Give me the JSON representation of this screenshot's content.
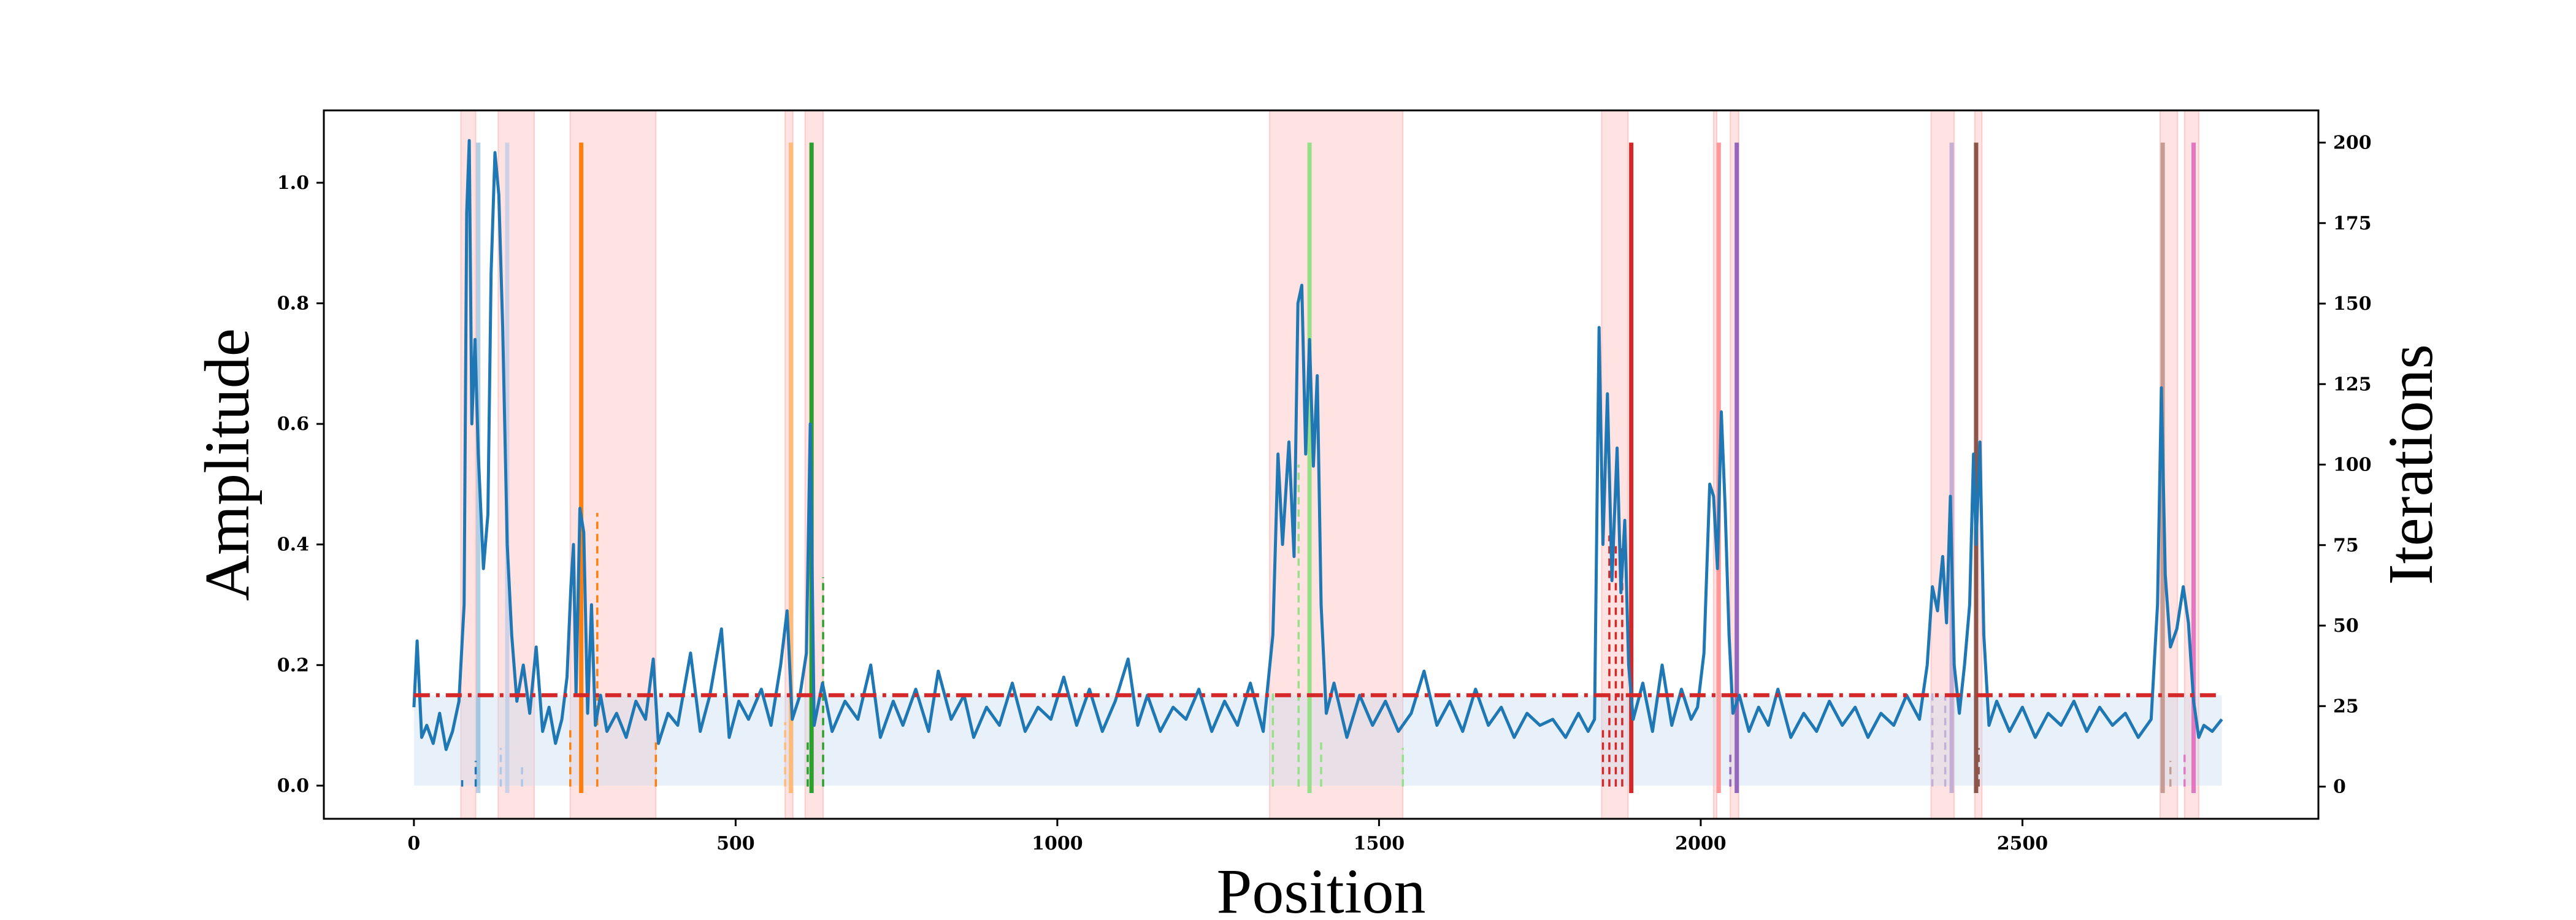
{
  "chart_data": {
    "type": "line",
    "xlabel": "Position",
    "ylabel": "Amplitude",
    "y2label": "Iterations",
    "xlim": [
      -140,
      2960
    ],
    "ylim": [
      -0.055,
      1.12
    ],
    "y2lim": [
      -10,
      210
    ],
    "x_ticks": [
      0,
      500,
      1000,
      1500,
      2000,
      2500
    ],
    "y_ticks": [
      0.0,
      0.2,
      0.4,
      0.6,
      0.8,
      1.0
    ],
    "y2_ticks": [
      0,
      25,
      50,
      75,
      100,
      125,
      150,
      175,
      200
    ],
    "threshold": 0.15,
    "baseline_band": [
      0,
      2810
    ],
    "series": [
      {
        "points": [
          [
            0,
            0.13
          ],
          [
            5,
            0.24
          ],
          [
            12,
            0.08
          ],
          [
            20,
            0.1
          ],
          [
            30,
            0.07
          ],
          [
            40,
            0.12
          ],
          [
            50,
            0.06
          ],
          [
            60,
            0.09
          ],
          [
            70,
            0.14
          ],
          [
            78,
            0.3
          ],
          [
            82,
            0.95
          ],
          [
            86,
            1.07
          ],
          [
            90,
            0.6
          ],
          [
            95,
            0.74
          ],
          [
            100,
            0.55
          ],
          [
            108,
            0.36
          ],
          [
            115,
            0.45
          ],
          [
            120,
            0.85
          ],
          [
            126,
            1.05
          ],
          [
            132,
            0.98
          ],
          [
            138,
            0.76
          ],
          [
            145,
            0.4
          ],
          [
            152,
            0.25
          ],
          [
            160,
            0.14
          ],
          [
            170,
            0.2
          ],
          [
            180,
            0.12
          ],
          [
            190,
            0.23
          ],
          [
            200,
            0.09
          ],
          [
            210,
            0.13
          ],
          [
            220,
            0.07
          ],
          [
            230,
            0.11
          ],
          [
            238,
            0.18
          ],
          [
            244,
            0.33
          ],
          [
            248,
            0.4
          ],
          [
            252,
            0.15
          ],
          [
            258,
            0.46
          ],
          [
            264,
            0.42
          ],
          [
            270,
            0.12
          ],
          [
            276,
            0.3
          ],
          [
            282,
            0.1
          ],
          [
            290,
            0.15
          ],
          [
            300,
            0.09
          ],
          [
            315,
            0.12
          ],
          [
            330,
            0.08
          ],
          [
            345,
            0.14
          ],
          [
            360,
            0.11
          ],
          [
            372,
            0.21
          ],
          [
            380,
            0.07
          ],
          [
            395,
            0.12
          ],
          [
            410,
            0.1
          ],
          [
            430,
            0.22
          ],
          [
            445,
            0.09
          ],
          [
            460,
            0.15
          ],
          [
            478,
            0.26
          ],
          [
            490,
            0.08
          ],
          [
            505,
            0.14
          ],
          [
            520,
            0.11
          ],
          [
            540,
            0.16
          ],
          [
            555,
            0.1
          ],
          [
            570,
            0.2
          ],
          [
            580,
            0.29
          ],
          [
            588,
            0.11
          ],
          [
            600,
            0.15
          ],
          [
            610,
            0.22
          ],
          [
            616,
            0.6
          ],
          [
            622,
            0.1
          ],
          [
            635,
            0.17
          ],
          [
            650,
            0.09
          ],
          [
            670,
            0.14
          ],
          [
            690,
            0.11
          ],
          [
            710,
            0.2
          ],
          [
            725,
            0.08
          ],
          [
            745,
            0.14
          ],
          [
            760,
            0.1
          ],
          [
            780,
            0.16
          ],
          [
            800,
            0.09
          ],
          [
            815,
            0.19
          ],
          [
            835,
            0.11
          ],
          [
            855,
            0.15
          ],
          [
            870,
            0.08
          ],
          [
            890,
            0.13
          ],
          [
            910,
            0.1
          ],
          [
            930,
            0.17
          ],
          [
            950,
            0.09
          ],
          [
            970,
            0.13
          ],
          [
            990,
            0.11
          ],
          [
            1010,
            0.18
          ],
          [
            1030,
            0.1
          ],
          [
            1050,
            0.16
          ],
          [
            1070,
            0.09
          ],
          [
            1090,
            0.14
          ],
          [
            1110,
            0.21
          ],
          [
            1125,
            0.1
          ],
          [
            1140,
            0.15
          ],
          [
            1160,
            0.09
          ],
          [
            1180,
            0.13
          ],
          [
            1200,
            0.11
          ],
          [
            1220,
            0.16
          ],
          [
            1240,
            0.09
          ],
          [
            1260,
            0.14
          ],
          [
            1280,
            0.1
          ],
          [
            1300,
            0.17
          ],
          [
            1320,
            0.09
          ],
          [
            1335,
            0.25
          ],
          [
            1343,
            0.55
          ],
          [
            1350,
            0.4
          ],
          [
            1360,
            0.57
          ],
          [
            1368,
            0.38
          ],
          [
            1374,
            0.8
          ],
          [
            1380,
            0.83
          ],
          [
            1386,
            0.55
          ],
          [
            1392,
            0.74
          ],
          [
            1398,
            0.53
          ],
          [
            1404,
            0.68
          ],
          [
            1410,
            0.3
          ],
          [
            1418,
            0.12
          ],
          [
            1430,
            0.17
          ],
          [
            1450,
            0.08
          ],
          [
            1470,
            0.15
          ],
          [
            1490,
            0.1
          ],
          [
            1510,
            0.14
          ],
          [
            1530,
            0.09
          ],
          [
            1550,
            0.12
          ],
          [
            1570,
            0.19
          ],
          [
            1590,
            0.1
          ],
          [
            1610,
            0.14
          ],
          [
            1630,
            0.09
          ],
          [
            1650,
            0.16
          ],
          [
            1670,
            0.1
          ],
          [
            1690,
            0.13
          ],
          [
            1710,
            0.08
          ],
          [
            1730,
            0.12
          ],
          [
            1750,
            0.1
          ],
          [
            1770,
            0.11
          ],
          [
            1790,
            0.08
          ],
          [
            1810,
            0.12
          ],
          [
            1825,
            0.09
          ],
          [
            1835,
            0.11
          ],
          [
            1842,
            0.76
          ],
          [
            1848,
            0.4
          ],
          [
            1855,
            0.65
          ],
          [
            1862,
            0.34
          ],
          [
            1870,
            0.56
          ],
          [
            1876,
            0.32
          ],
          [
            1882,
            0.44
          ],
          [
            1888,
            0.2
          ],
          [
            1895,
            0.11
          ],
          [
            1910,
            0.17
          ],
          [
            1925,
            0.09
          ],
          [
            1940,
            0.2
          ],
          [
            1955,
            0.1
          ],
          [
            1970,
            0.16
          ],
          [
            1985,
            0.11
          ],
          [
            1995,
            0.13
          ],
          [
            2005,
            0.22
          ],
          [
            2014,
            0.5
          ],
          [
            2020,
            0.48
          ],
          [
            2026,
            0.36
          ],
          [
            2032,
            0.62
          ],
          [
            2038,
            0.46
          ],
          [
            2044,
            0.25
          ],
          [
            2050,
            0.12
          ],
          [
            2060,
            0.15
          ],
          [
            2075,
            0.09
          ],
          [
            2090,
            0.13
          ],
          [
            2105,
            0.1
          ],
          [
            2120,
            0.16
          ],
          [
            2140,
            0.08
          ],
          [
            2160,
            0.12
          ],
          [
            2180,
            0.09
          ],
          [
            2200,
            0.14
          ],
          [
            2220,
            0.1
          ],
          [
            2240,
            0.13
          ],
          [
            2260,
            0.08
          ],
          [
            2280,
            0.12
          ],
          [
            2300,
            0.1
          ],
          [
            2320,
            0.15
          ],
          [
            2340,
            0.11
          ],
          [
            2352,
            0.2
          ],
          [
            2360,
            0.33
          ],
          [
            2368,
            0.29
          ],
          [
            2376,
            0.38
          ],
          [
            2382,
            0.27
          ],
          [
            2388,
            0.48
          ],
          [
            2394,
            0.2
          ],
          [
            2402,
            0.12
          ],
          [
            2410,
            0.2
          ],
          [
            2418,
            0.3
          ],
          [
            2424,
            0.55
          ],
          [
            2428,
            0.4
          ],
          [
            2434,
            0.57
          ],
          [
            2440,
            0.25
          ],
          [
            2448,
            0.1
          ],
          [
            2460,
            0.14
          ],
          [
            2480,
            0.09
          ],
          [
            2500,
            0.13
          ],
          [
            2520,
            0.08
          ],
          [
            2540,
            0.12
          ],
          [
            2560,
            0.1
          ],
          [
            2580,
            0.14
          ],
          [
            2600,
            0.09
          ],
          [
            2620,
            0.13
          ],
          [
            2640,
            0.1
          ],
          [
            2660,
            0.12
          ],
          [
            2680,
            0.08
          ],
          [
            2700,
            0.11
          ],
          [
            2710,
            0.3
          ],
          [
            2716,
            0.66
          ],
          [
            2722,
            0.35
          ],
          [
            2730,
            0.23
          ],
          [
            2740,
            0.26
          ],
          [
            2750,
            0.33
          ],
          [
            2758,
            0.27
          ],
          [
            2766,
            0.14
          ],
          [
            2774,
            0.08
          ],
          [
            2782,
            0.1
          ],
          [
            2795,
            0.09
          ],
          [
            2810,
            0.11
          ]
        ]
      }
    ],
    "shaded_regions": [
      [
        73,
        96
      ],
      [
        131,
        187
      ],
      [
        243,
        376
      ],
      [
        577,
        589
      ],
      [
        608,
        636
      ],
      [
        1330,
        1537
      ],
      [
        1846,
        1887
      ],
      [
        2020,
        2025
      ],
      [
        2046,
        2059
      ],
      [
        2358,
        2394
      ],
      [
        2426,
        2437
      ],
      [
        2714,
        2741
      ],
      [
        2752,
        2774
      ]
    ],
    "event_lines": [
      {
        "x": 260,
        "color": "#ff7f0e",
        "alpha": 1.0
      },
      {
        "x": 586,
        "color": "#ffbb78",
        "alpha": 1.0
      },
      {
        "x": 618,
        "color": "#2ca02c",
        "alpha": 1.0
      },
      {
        "x": 1392,
        "color": "#98df8a",
        "alpha": 1.0
      },
      {
        "x": 1892,
        "color": "#d62728",
        "alpha": 1.0
      },
      {
        "x": 2028,
        "color": "#ff9896",
        "alpha": 1.0
      },
      {
        "x": 2056,
        "color": "#9467bd",
        "alpha": 1.0
      },
      {
        "x": 2390,
        "color": "#c5b0d5",
        "alpha": 1.0
      },
      {
        "x": 2428,
        "color": "#8c564b",
        "alpha": 1.0
      },
      {
        "x": 2718,
        "color": "#c49c94",
        "alpha": 1.0
      },
      {
        "x": 2766,
        "color": "#e377c2",
        "alpha": 1.0
      },
      {
        "x": 100,
        "color": "#1f77b4",
        "alpha": 0.35
      },
      {
        "x": 145,
        "color": "#aec7e8",
        "alpha": 0.6
      }
    ],
    "dashed_markers": [
      {
        "x": 75,
        "y2": 2,
        "color": "#1f77b4"
      },
      {
        "x": 96,
        "y2": 8,
        "color": "#1f77b4"
      },
      {
        "x": 135,
        "y2": 12,
        "color": "#aec7e8"
      },
      {
        "x": 168,
        "y2": 6,
        "color": "#aec7e8"
      },
      {
        "x": 243,
        "y2": 18,
        "color": "#ff7f0e"
      },
      {
        "x": 285,
        "y2": 85,
        "color": "#ff7f0e"
      },
      {
        "x": 376,
        "y2": 15,
        "color": "#ff7f0e"
      },
      {
        "x": 577,
        "y2": 20,
        "color": "#ffbb78"
      },
      {
        "x": 612,
        "y2": 15,
        "color": "#2ca02c"
      },
      {
        "x": 636,
        "y2": 65,
        "color": "#2ca02c"
      },
      {
        "x": 1335,
        "y2": 30,
        "color": "#98df8a"
      },
      {
        "x": 1375,
        "y2": 100,
        "color": "#98df8a"
      },
      {
        "x": 1410,
        "y2": 15,
        "color": "#98df8a"
      },
      {
        "x": 1537,
        "y2": 12,
        "color": "#98df8a"
      },
      {
        "x": 1848,
        "y2": 18,
        "color": "#d62728"
      },
      {
        "x": 1858,
        "y2": 78,
        "color": "#d62728"
      },
      {
        "x": 1868,
        "y2": 76,
        "color": "#d62728"
      },
      {
        "x": 1878,
        "y2": 74,
        "color": "#d62728"
      },
      {
        "x": 2046,
        "y2": 10,
        "color": "#9467bd"
      },
      {
        "x": 2360,
        "y2": 30,
        "color": "#c5b0d5"
      },
      {
        "x": 2380,
        "y2": 28,
        "color": "#c5b0d5"
      },
      {
        "x": 2432,
        "y2": 12,
        "color": "#8c564b"
      },
      {
        "x": 2730,
        "y2": 8,
        "color": "#c49c94"
      },
      {
        "x": 2752,
        "y2": 10,
        "color": "#e377c2"
      }
    ],
    "colors": {
      "line": "#1f77b4",
      "threshold": "#d62728",
      "band": "#c6dbef",
      "shade": "#ffb3b3"
    }
  }
}
